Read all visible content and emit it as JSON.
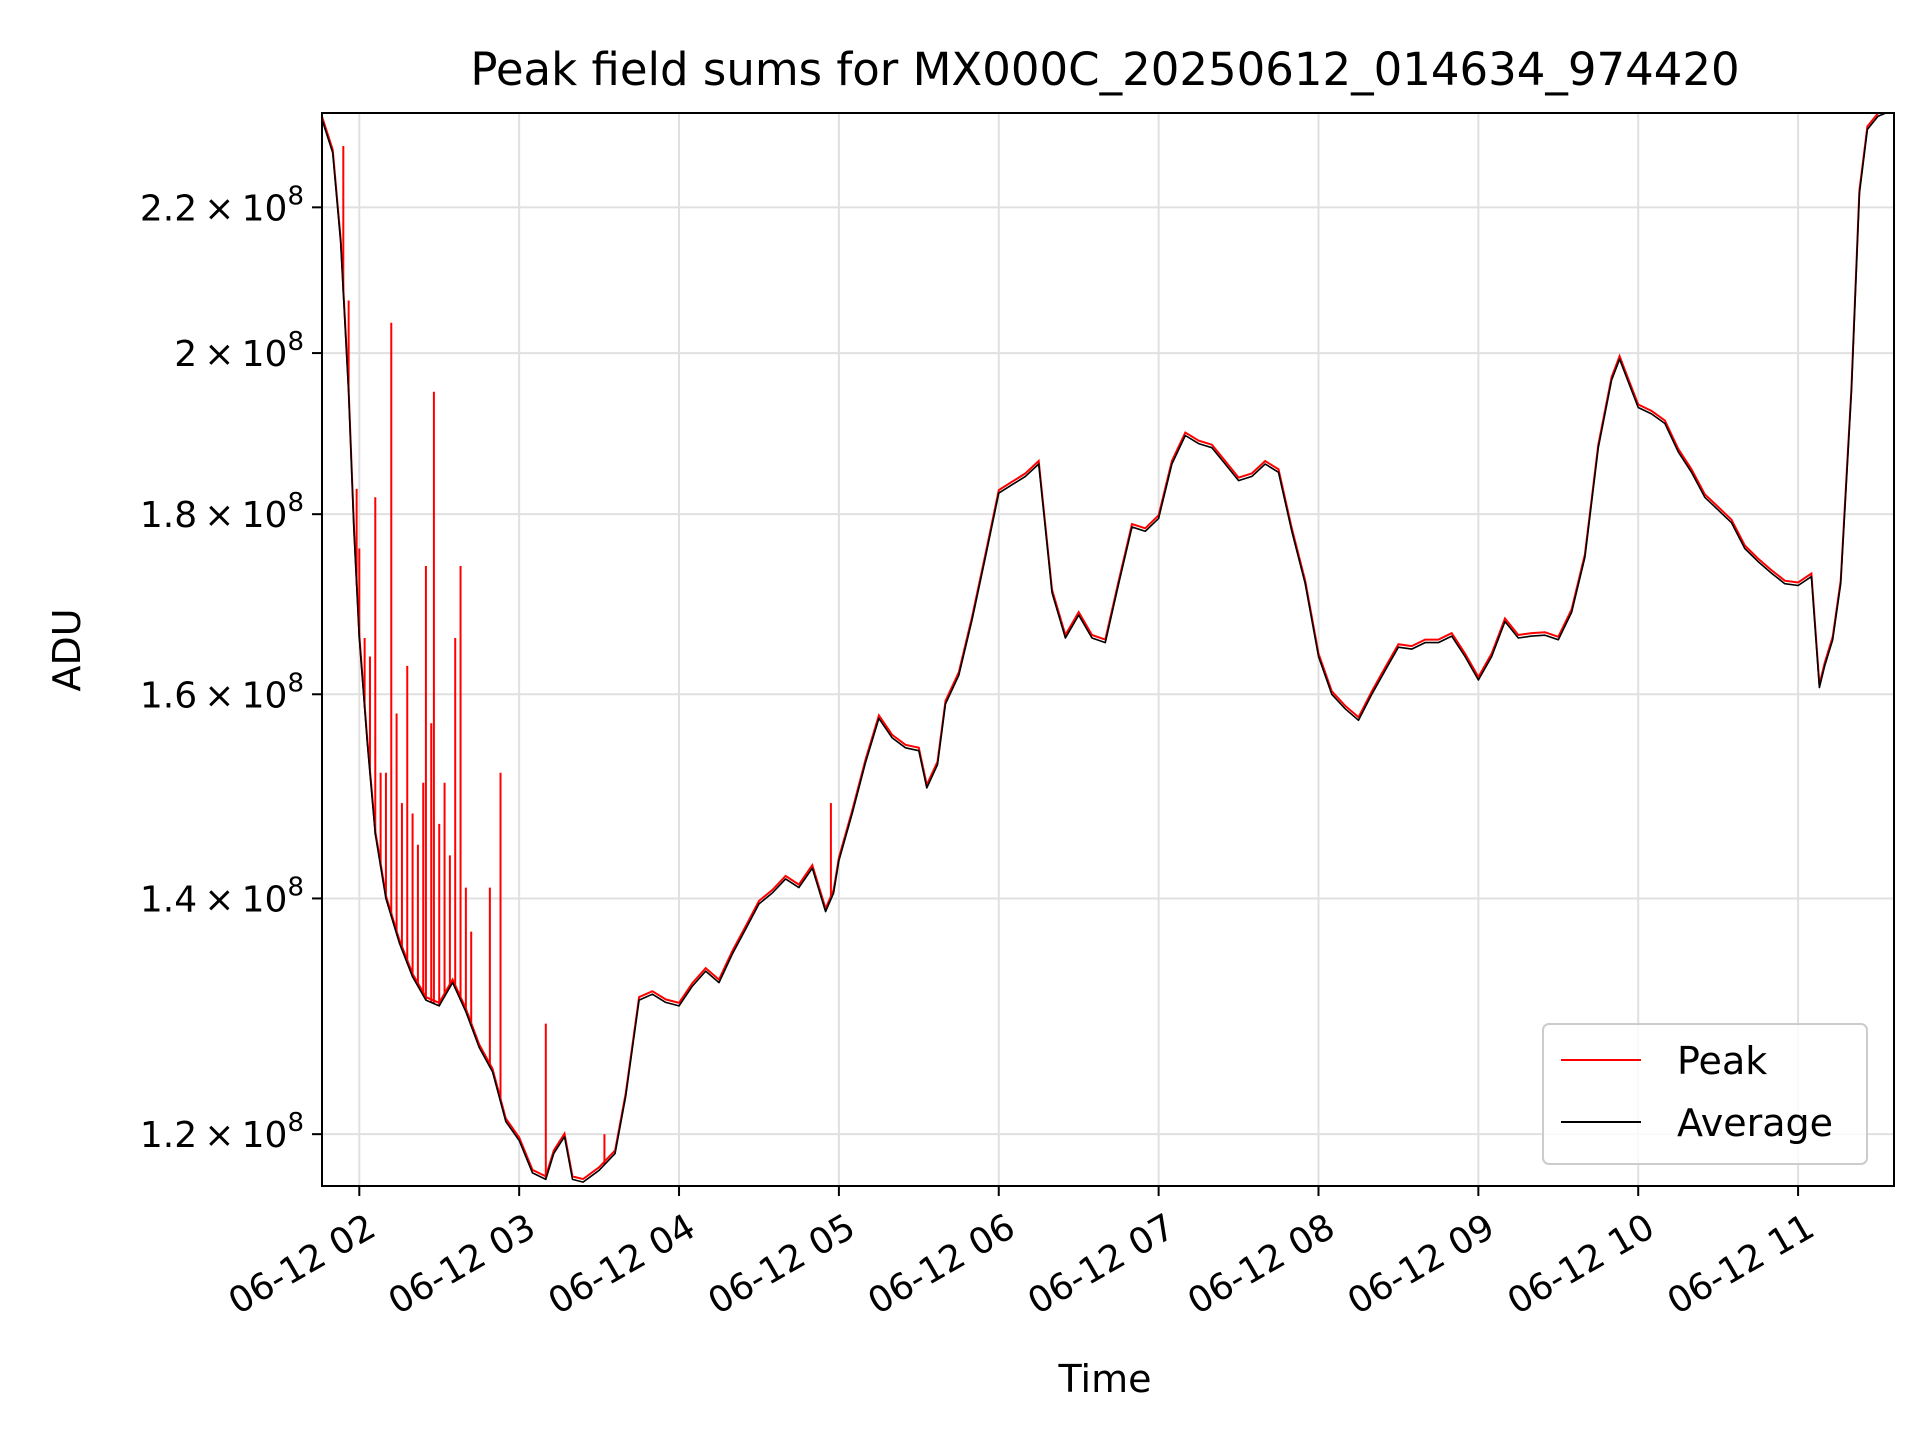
{
  "chart_data": {
    "type": "line",
    "title": "Peak field sums for MX000C_20250612_014634_974420",
    "xlabel": "Time",
    "ylabel": "ADU",
    "yscale": "log",
    "xlim": [
      "06-12 01:46",
      "06-12 11:36"
    ],
    "ylim": [
      116000000,
      234000000
    ],
    "grid": true,
    "legend_position": "lower right",
    "x_ticks": [
      "06-12 02",
      "06-12 03",
      "06-12 04",
      "06-12 05",
      "06-12 06",
      "06-12 07",
      "06-12 08",
      "06-12 09",
      "06-12 10",
      "06-12 11"
    ],
    "y_ticks": [
      {
        "value": 120000000,
        "mantissa": "1.2",
        "exponent": "8"
      },
      {
        "value": 140000000,
        "mantissa": "1.4",
        "exponent": "8"
      },
      {
        "value": 160000000,
        "mantissa": "1.6",
        "exponent": "8"
      },
      {
        "value": 180000000,
        "mantissa": "1.8",
        "exponent": "8"
      },
      {
        "value": 200000000,
        "mantissa": "2",
        "exponent": "8"
      },
      {
        "value": 220000000,
        "mantissa": "2.2",
        "exponent": "8"
      }
    ],
    "series": [
      {
        "name": "Average",
        "color": "#000000",
        "x": [
          "06-12 01:46",
          "06-12 01:50",
          "06-12 01:53",
          "06-12 01:56",
          "06-12 01:58",
          "06-12 02:00",
          "06-12 02:03",
          "06-12 02:06",
          "06-12 02:10",
          "06-12 02:15",
          "06-12 02:20",
          "06-12 02:25",
          "06-12 02:30",
          "06-12 02:35",
          "06-12 02:40",
          "06-12 02:45",
          "06-12 02:50",
          "06-12 02:55",
          "06-12 03:00",
          "06-12 03:05",
          "06-12 03:10",
          "06-12 03:13",
          "06-12 03:17",
          "06-12 03:20",
          "06-12 03:24",
          "06-12 03:30",
          "06-12 03:36",
          "06-12 03:40",
          "06-12 03:45",
          "06-12 03:50",
          "06-12 03:55",
          "06-12 04:00",
          "06-12 04:05",
          "06-12 04:10",
          "06-12 04:15",
          "06-12 04:20",
          "06-12 04:25",
          "06-12 04:30",
          "06-12 04:35",
          "06-12 04:40",
          "06-12 04:45",
          "06-12 04:50",
          "06-12 04:55",
          "06-12 04:58",
          "06-12 05:00",
          "06-12 05:05",
          "06-12 05:10",
          "06-12 05:15",
          "06-12 05:20",
          "06-12 05:25",
          "06-12 05:30",
          "06-12 05:33",
          "06-12 05:37",
          "06-12 05:40",
          "06-12 05:45",
          "06-12 05:50",
          "06-12 05:55",
          "06-12 06:00",
          "06-12 06:05",
          "06-12 06:10",
          "06-12 06:15",
          "06-12 06:20",
          "06-12 06:25",
          "06-12 06:30",
          "06-12 06:35",
          "06-12 06:40",
          "06-12 06:45",
          "06-12 06:50",
          "06-12 06:55",
          "06-12 07:00",
          "06-12 07:05",
          "06-12 07:10",
          "06-12 07:15",
          "06-12 07:20",
          "06-12 07:25",
          "06-12 07:30",
          "06-12 07:35",
          "06-12 07:40",
          "06-12 07:45",
          "06-12 07:50",
          "06-12 07:55",
          "06-12 08:00",
          "06-12 08:05",
          "06-12 08:10",
          "06-12 08:15",
          "06-12 08:20",
          "06-12 08:25",
          "06-12 08:30",
          "06-12 08:35",
          "06-12 08:40",
          "06-12 08:45",
          "06-12 08:50",
          "06-12 08:55",
          "06-12 09:00",
          "06-12 09:05",
          "06-12 09:10",
          "06-12 09:15",
          "06-12 09:20",
          "06-12 09:25",
          "06-12 09:30",
          "06-12 09:35",
          "06-12 09:40",
          "06-12 09:45",
          "06-12 09:50",
          "06-12 09:53",
          "06-12 09:56",
          "06-12 10:00",
          "06-12 10:05",
          "06-12 10:10",
          "06-12 10:15",
          "06-12 10:20",
          "06-12 10:25",
          "06-12 10:30",
          "06-12 10:35",
          "06-12 10:40",
          "06-12 10:45",
          "06-12 10:50",
          "06-12 10:55",
          "06-12 11:00",
          "06-12 11:05",
          "06-12 11:08",
          "06-12 11:10",
          "06-12 11:13",
          "06-12 11:16",
          "06-12 11:20",
          "06-12 11:23",
          "06-12 11:26",
          "06-12 11:30",
          "06-12 11:36"
        ],
        "values": [
          233000000,
          228000000,
          215000000,
          195000000,
          178000000,
          166000000,
          155000000,
          146000000,
          140000000,
          136000000,
          133000000,
          131000000,
          130500000,
          132500000,
          130000000,
          127000000,
          125000000,
          121000000,
          119500000,
          117000000,
          116500000,
          118500000,
          119800000,
          116500000,
          116300000,
          117200000,
          118500000,
          123000000,
          131000000,
          131500000,
          130800000,
          130500000,
          132200000,
          133500000,
          132500000,
          135000000,
          137200000,
          139500000,
          140500000,
          141800000,
          141000000,
          142800000,
          138800000,
          140500000,
          143500000,
          148000000,
          153000000,
          157500000,
          155500000,
          154500000,
          154200000,
          150500000,
          152800000,
          159000000,
          162000000,
          168000000,
          175000000,
          182500000,
          183500000,
          184500000,
          186000000,
          171000000,
          166000000,
          168500000,
          166000000,
          165500000,
          172000000,
          178500000,
          178000000,
          179500000,
          186000000,
          189500000,
          188500000,
          188000000,
          186000000,
          184000000,
          184500000,
          186000000,
          185000000,
          178000000,
          172000000,
          164000000,
          160000000,
          158500000,
          157300000,
          160000000,
          162500000,
          165000000,
          164800000,
          165500000,
          165500000,
          166200000,
          164000000,
          161500000,
          164000000,
          167800000,
          166000000,
          166200000,
          166300000,
          165800000,
          168800000,
          175000000,
          188000000,
          196500000,
          199200000,
          196500000,
          193000000,
          192200000,
          191000000,
          187500000,
          185000000,
          182000000,
          180500000,
          179000000,
          176000000,
          174500000,
          173200000,
          172000000,
          171800000,
          172800000,
          160700000,
          163000000,
          165800000,
          172000000,
          195000000,
          222000000,
          231500000,
          233500000,
          234500000
        ]
      },
      {
        "name": "Peak",
        "color": "#ff0000",
        "base": "Average",
        "spikes": [
          {
            "x": "06-12 01:54",
            "y": 229000000
          },
          {
            "x": "06-12 01:56",
            "y": 207000000
          },
          {
            "x": "06-12 01:59",
            "y": 183000000
          },
          {
            "x": "06-12 02:00",
            "y": 176000000
          },
          {
            "x": "06-12 02:02",
            "y": 166000000
          },
          {
            "x": "06-12 02:04",
            "y": 164000000
          },
          {
            "x": "06-12 02:06",
            "y": 182000000
          },
          {
            "x": "06-12 02:08",
            "y": 152000000
          },
          {
            "x": "06-12 02:10",
            "y": 152000000
          },
          {
            "x": "06-12 02:12",
            "y": 204000000
          },
          {
            "x": "06-12 02:14",
            "y": 158000000
          },
          {
            "x": "06-12 02:16",
            "y": 149000000
          },
          {
            "x": "06-12 02:18",
            "y": 163000000
          },
          {
            "x": "06-12 02:20",
            "y": 148000000
          },
          {
            "x": "06-12 02:22",
            "y": 145000000
          },
          {
            "x": "06-12 02:24",
            "y": 151000000
          },
          {
            "x": "06-12 02:25",
            "y": 174000000
          },
          {
            "x": "06-12 02:27",
            "y": 157000000
          },
          {
            "x": "06-12 02:28",
            "y": 195000000
          },
          {
            "x": "06-12 02:30",
            "y": 147000000
          },
          {
            "x": "06-12 02:32",
            "y": 151000000
          },
          {
            "x": "06-12 02:34",
            "y": 144000000
          },
          {
            "x": "06-12 02:36",
            "y": 166000000
          },
          {
            "x": "06-12 02:38",
            "y": 174000000
          },
          {
            "x": "06-12 02:40",
            "y": 141000000
          },
          {
            "x": "06-12 02:42",
            "y": 137000000
          },
          {
            "x": "06-12 02:49",
            "y": 141000000
          },
          {
            "x": "06-12 02:53",
            "y": 152000000
          },
          {
            "x": "06-12 03:10",
            "y": 129000000
          },
          {
            "x": "06-12 03:32",
            "y": 120000000
          },
          {
            "x": "06-12 04:18",
            "y": 134000000
          },
          {
            "x": "06-12 04:57",
            "y": 149000000
          }
        ]
      }
    ]
  }
}
